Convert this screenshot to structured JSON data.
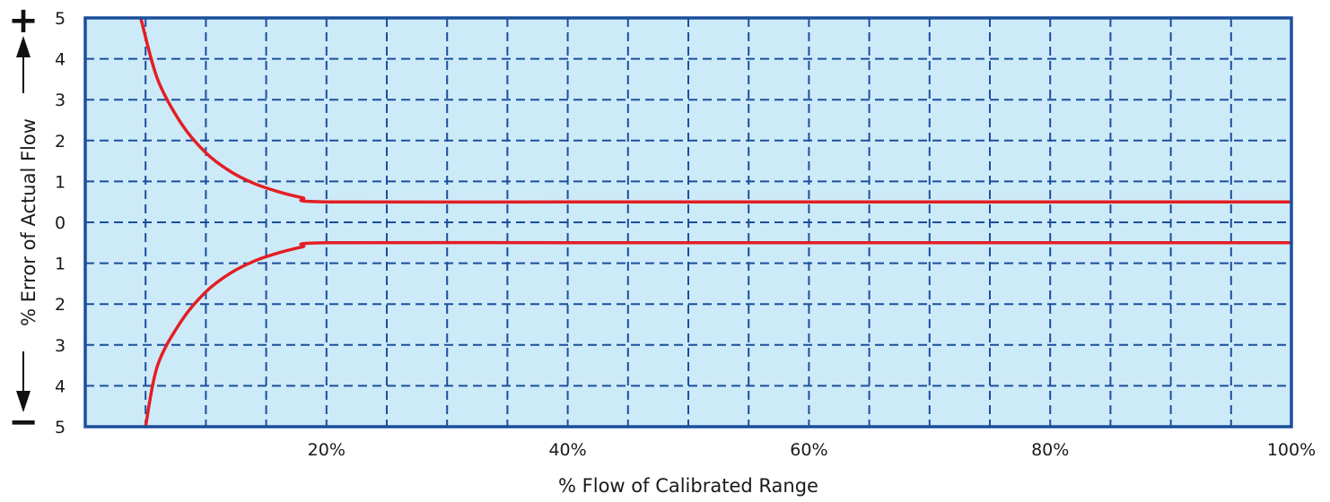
{
  "chart_data": {
    "type": "line",
    "xlabel": "% Flow of Calibrated Range",
    "ylabel": "% Error of Actual Flow",
    "xlim": [
      0,
      100
    ],
    "ylim": [
      -5,
      5
    ],
    "x_ticks": [
      {
        "value": 20,
        "label": "20%"
      },
      {
        "value": 40,
        "label": "40%"
      },
      {
        "value": 60,
        "label": "60%"
      },
      {
        "value": 80,
        "label": "80%"
      },
      {
        "value": 100,
        "label": "100%"
      }
    ],
    "y_ticks": [
      {
        "value": 5,
        "label": "5"
      },
      {
        "value": 4,
        "label": "4"
      },
      {
        "value": 3,
        "label": "3"
      },
      {
        "value": 2,
        "label": "2"
      },
      {
        "value": 1,
        "label": "1"
      },
      {
        "value": 0,
        "label": "0"
      },
      {
        "value": -1,
        "label": "1"
      },
      {
        "value": -2,
        "label": "2"
      },
      {
        "value": -3,
        "label": "3"
      },
      {
        "value": -4,
        "label": "4"
      },
      {
        "value": -5,
        "label": "5"
      }
    ],
    "positive_sign": "+",
    "negative_sign": "−",
    "grid": true,
    "colors": {
      "plot_background": "#cdeaf9",
      "grid_and_border": "#1b4f9c",
      "series": "#e31e24"
    },
    "series": [
      {
        "x": [
          4.6,
          6,
          8,
          10,
          12,
          14,
          16,
          18,
          20,
          40,
          60,
          80,
          100
        ],
        "y": [
          5.0,
          3.5,
          2.4,
          1.7,
          1.25,
          0.95,
          0.75,
          0.6,
          0.5,
          0.5,
          0.5,
          0.5,
          0.5
        ]
      },
      {
        "x": [
          5.0,
          6,
          8,
          10,
          12,
          14,
          16,
          18,
          20,
          40,
          60,
          80,
          100
        ],
        "y": [
          -5.0,
          -3.5,
          -2.4,
          -1.7,
          -1.25,
          -0.95,
          -0.75,
          -0.6,
          -0.5,
          -0.5,
          -0.5,
          -0.5,
          -0.5
        ]
      }
    ]
  }
}
